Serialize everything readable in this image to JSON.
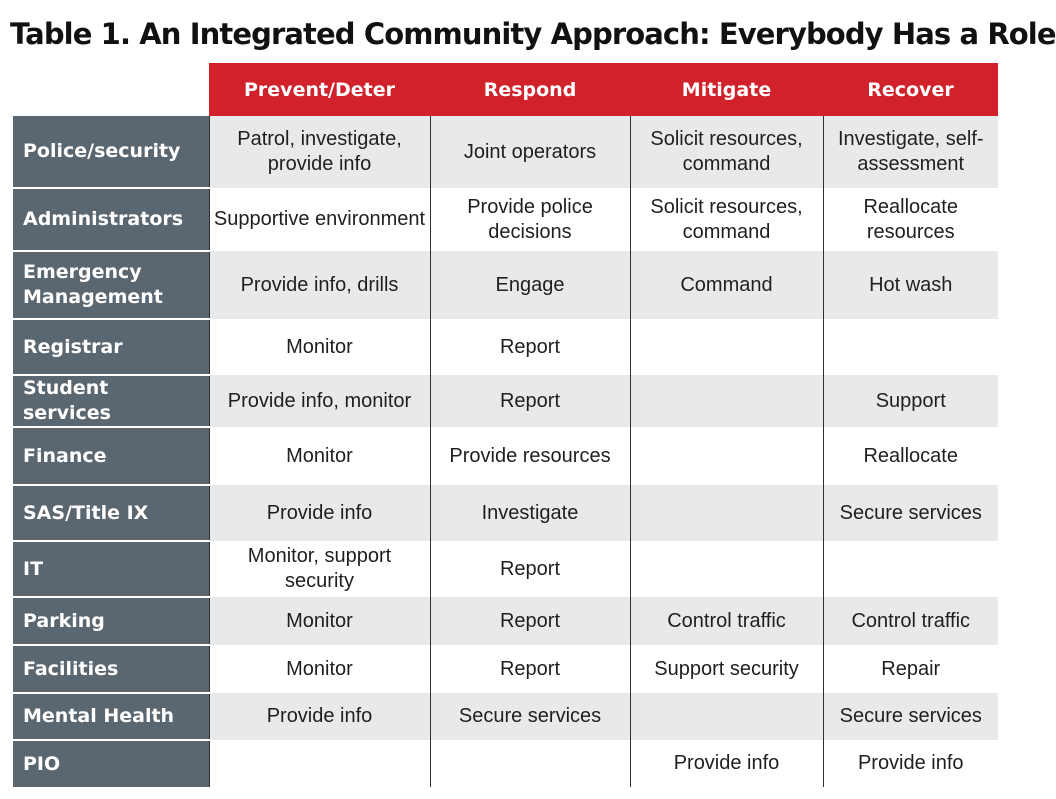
{
  "title": "Table 1. An Integrated Community Approach: Everybody Has a Role",
  "columns": [
    "Prevent/Deter",
    "Respond",
    "Mitigate",
    "Recover"
  ],
  "rows": [
    {
      "role": "Police/security",
      "prevent": "Patrol, investigate, provide info",
      "respond": "Joint operators",
      "mitigate": "Solicit resources, command",
      "recover": "Investigate, self-assessment"
    },
    {
      "role": "Administrators",
      "prevent": "Supportive environment",
      "respond": "Provide police decisions",
      "mitigate": "Solicit resources, command",
      "recover": "Reallocate resources"
    },
    {
      "role": "Emergency Management",
      "prevent": "Provide info, drills",
      "respond": "Engage",
      "mitigate": "Command",
      "recover": "Hot wash"
    },
    {
      "role": "Registrar",
      "prevent": "Monitor",
      "respond": "Report",
      "mitigate": "",
      "recover": ""
    },
    {
      "role": "Student services",
      "prevent": "Provide info, monitor",
      "respond": "Report",
      "mitigate": "",
      "recover": "Support"
    },
    {
      "role": "Finance",
      "prevent": "Monitor",
      "respond": "Provide resources",
      "mitigate": "",
      "recover": "Reallocate"
    },
    {
      "role": "SAS/Title IX",
      "prevent": "Provide info",
      "respond": "Investigate",
      "mitigate": "",
      "recover": "Secure services"
    },
    {
      "role": "IT",
      "prevent": "Monitor, support security",
      "respond": "Report",
      "mitigate": "",
      "recover": ""
    },
    {
      "role": "Parking",
      "prevent": "Monitor",
      "respond": "Report",
      "mitigate": "Control traffic",
      "recover": "Control traffic"
    },
    {
      "role": "Facilities",
      "prevent": "Monitor",
      "respond": "Report",
      "mitigate": "Support security",
      "recover": "Repair"
    },
    {
      "role": "Mental Health",
      "prevent": "Provide info",
      "respond": "Secure services",
      "mitigate": "",
      "recover": "Secure services"
    },
    {
      "role": "PIO",
      "prevent": "",
      "respond": "",
      "mitigate": "Provide info",
      "recover": "Provide info"
    }
  ],
  "colors": {
    "header_red": "#d1222b",
    "role_slate": "#5b6770",
    "row_shade": "#e8e9eb"
  }
}
